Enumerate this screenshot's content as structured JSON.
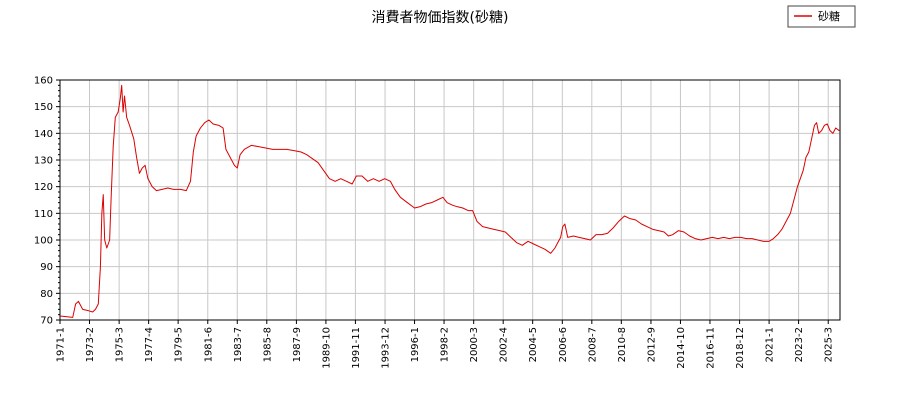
{
  "chart_data": {
    "type": "line",
    "title": "消費者物価指数(砂糖)",
    "xlabel": "",
    "ylabel": "",
    "ylim": [
      70,
      160
    ],
    "yticks": [
      70,
      80,
      90,
      100,
      110,
      120,
      130,
      140,
      150,
      160
    ],
    "xlim": [
      1971.0,
      2026.0
    ],
    "xticks": [
      {
        "label": "1971-1",
        "x": 1971.0
      },
      {
        "label": "1973-2",
        "x": 1973.08
      },
      {
        "label": "1975-3",
        "x": 1975.17
      },
      {
        "label": "1977-4",
        "x": 1977.25
      },
      {
        "label": "1979-5",
        "x": 1979.33
      },
      {
        "label": "1981-6",
        "x": 1981.42
      },
      {
        "label": "1983-7",
        "x": 1983.5
      },
      {
        "label": "1985-8",
        "x": 1985.58
      },
      {
        "label": "1987-9",
        "x": 1987.67
      },
      {
        "label": "1989-10",
        "x": 1989.75
      },
      {
        "label": "1991-11",
        "x": 1991.83
      },
      {
        "label": "1993-12",
        "x": 1993.92
      },
      {
        "label": "1996-1",
        "x": 1996.0
      },
      {
        "label": "1998-2",
        "x": 1998.08
      },
      {
        "label": "2000-3",
        "x": 2000.17
      },
      {
        "label": "2002-4",
        "x": 2002.25
      },
      {
        "label": "2004-5",
        "x": 2004.33
      },
      {
        "label": "2006-6",
        "x": 2006.42
      },
      {
        "label": "2008-7",
        "x": 2008.5
      },
      {
        "label": "2010-8",
        "x": 2010.58
      },
      {
        "label": "2012-9",
        "x": 2012.67
      },
      {
        "label": "2014-10",
        "x": 2014.75
      },
      {
        "label": "2016-11",
        "x": 2016.83
      },
      {
        "label": "2018-12",
        "x": 2018.92
      },
      {
        "label": "2021-1",
        "x": 2021.0
      },
      {
        "label": "2023-2",
        "x": 2023.08
      },
      {
        "label": "2025-3",
        "x": 2025.17
      }
    ],
    "grid": true,
    "legend": "top-right",
    "series": [
      {
        "name": "砂糖",
        "color": "#dd0000",
        "points": [
          [
            1971.0,
            71.5
          ],
          [
            1971.5,
            71.2
          ],
          [
            1971.9,
            71.0
          ],
          [
            1972.1,
            76.0
          ],
          [
            1972.3,
            77.0
          ],
          [
            1972.6,
            74.0
          ],
          [
            1973.0,
            73.5
          ],
          [
            1973.3,
            73.0
          ],
          [
            1973.5,
            74.0
          ],
          [
            1973.7,
            76.0
          ],
          [
            1973.85,
            90.0
          ],
          [
            1973.95,
            110.0
          ],
          [
            1974.05,
            117.0
          ],
          [
            1974.15,
            100.0
          ],
          [
            1974.3,
            97.0
          ],
          [
            1974.5,
            100.0
          ],
          [
            1974.6,
            115.0
          ],
          [
            1974.75,
            135.0
          ],
          [
            1974.9,
            146.0
          ],
          [
            1975.1,
            148.0
          ],
          [
            1975.25,
            153.0
          ],
          [
            1975.35,
            158.0
          ],
          [
            1975.45,
            148.0
          ],
          [
            1975.55,
            154.0
          ],
          [
            1975.7,
            146.0
          ],
          [
            1975.9,
            143.0
          ],
          [
            1976.2,
            138.0
          ],
          [
            1976.4,
            131.0
          ],
          [
            1976.6,
            125.0
          ],
          [
            1976.8,
            127.0
          ],
          [
            1977.0,
            128.0
          ],
          [
            1977.2,
            123.0
          ],
          [
            1977.5,
            120.0
          ],
          [
            1977.8,
            118.5
          ],
          [
            1978.2,
            119.0
          ],
          [
            1978.6,
            119.5
          ],
          [
            1979.0,
            119.0
          ],
          [
            1979.5,
            119.0
          ],
          [
            1979.9,
            118.5
          ],
          [
            1980.2,
            122.0
          ],
          [
            1980.4,
            133.0
          ],
          [
            1980.6,
            139.0
          ],
          [
            1980.9,
            142.0
          ],
          [
            1981.2,
            144.0
          ],
          [
            1981.5,
            145.0
          ],
          [
            1981.8,
            143.5
          ],
          [
            1982.2,
            143.0
          ],
          [
            1982.5,
            142.0
          ],
          [
            1982.7,
            134.0
          ],
          [
            1983.0,
            131.0
          ],
          [
            1983.3,
            128.0
          ],
          [
            1983.5,
            127.0
          ],
          [
            1983.7,
            132.0
          ],
          [
            1984.0,
            134.0
          ],
          [
            1984.5,
            135.5
          ],
          [
            1985.0,
            135.0
          ],
          [
            1985.5,
            134.5
          ],
          [
            1986.0,
            134.0
          ],
          [
            1986.5,
            134.0
          ],
          [
            1987.0,
            134.0
          ],
          [
            1987.5,
            133.5
          ],
          [
            1988.0,
            133.0
          ],
          [
            1988.4,
            132.0
          ],
          [
            1988.8,
            130.5
          ],
          [
            1989.2,
            129.0
          ],
          [
            1989.6,
            126.0
          ],
          [
            1990.0,
            123.0
          ],
          [
            1990.4,
            122.0
          ],
          [
            1990.8,
            123.0
          ],
          [
            1991.2,
            122.0
          ],
          [
            1991.6,
            121.0
          ],
          [
            1991.9,
            124.0
          ],
          [
            1992.3,
            124.0
          ],
          [
            1992.7,
            122.0
          ],
          [
            1993.1,
            123.0
          ],
          [
            1993.5,
            122.0
          ],
          [
            1993.9,
            123.0
          ],
          [
            1994.3,
            122.0
          ],
          [
            1994.6,
            119.0
          ],
          [
            1995.0,
            116.0
          ],
          [
            1995.5,
            114.0
          ],
          [
            1996.0,
            112.0
          ],
          [
            1996.4,
            112.5
          ],
          [
            1996.8,
            113.5
          ],
          [
            1997.2,
            114.0
          ],
          [
            1997.6,
            115.0
          ],
          [
            1998.0,
            116.0
          ],
          [
            1998.3,
            114.0
          ],
          [
            1998.7,
            113.0
          ],
          [
            1999.0,
            112.5
          ],
          [
            1999.4,
            112.0
          ],
          [
            1999.8,
            111.0
          ],
          [
            2000.1,
            111.0
          ],
          [
            2000.4,
            107.0
          ],
          [
            2000.8,
            105.0
          ],
          [
            2001.2,
            104.5
          ],
          [
            2001.6,
            104.0
          ],
          [
            2002.0,
            103.5
          ],
          [
            2002.4,
            103.0
          ],
          [
            2002.8,
            101.0
          ],
          [
            2003.2,
            99.0
          ],
          [
            2003.6,
            98.0
          ],
          [
            2004.0,
            99.5
          ],
          [
            2004.4,
            98.5
          ],
          [
            2004.8,
            97.5
          ],
          [
            2005.2,
            96.5
          ],
          [
            2005.6,
            95.0
          ],
          [
            2005.9,
            97.0
          ],
          [
            2006.1,
            99.0
          ],
          [
            2006.3,
            101.0
          ],
          [
            2006.45,
            105.0
          ],
          [
            2006.6,
            106.0
          ],
          [
            2006.8,
            101.0
          ],
          [
            2007.2,
            101.5
          ],
          [
            2007.6,
            101.0
          ],
          [
            2008.0,
            100.5
          ],
          [
            2008.4,
            100.0
          ],
          [
            2008.8,
            102.0
          ],
          [
            2009.2,
            102.0
          ],
          [
            2009.6,
            102.5
          ],
          [
            2010.0,
            104.5
          ],
          [
            2010.4,
            107.0
          ],
          [
            2010.8,
            109.0
          ],
          [
            2011.2,
            108.0
          ],
          [
            2011.6,
            107.5
          ],
          [
            2012.0,
            106.0
          ],
          [
            2012.4,
            105.0
          ],
          [
            2012.8,
            104.0
          ],
          [
            2013.2,
            103.5
          ],
          [
            2013.6,
            103.0
          ],
          [
            2013.9,
            101.5
          ],
          [
            2014.2,
            102.0
          ],
          [
            2014.6,
            103.5
          ],
          [
            2015.0,
            103.0
          ],
          [
            2015.4,
            101.5
          ],
          [
            2015.8,
            100.5
          ],
          [
            2016.2,
            100.0
          ],
          [
            2016.6,
            100.5
          ],
          [
            2017.0,
            101.0
          ],
          [
            2017.4,
            100.5
          ],
          [
            2017.8,
            101.0
          ],
          [
            2018.2,
            100.5
          ],
          [
            2018.6,
            101.0
          ],
          [
            2019.0,
            101.0
          ],
          [
            2019.4,
            100.5
          ],
          [
            2019.8,
            100.5
          ],
          [
            2020.2,
            100.0
          ],
          [
            2020.6,
            99.5
          ],
          [
            2021.0,
            99.5
          ],
          [
            2021.3,
            100.5
          ],
          [
            2021.6,
            102.0
          ],
          [
            2021.9,
            104.0
          ],
          [
            2022.2,
            107.0
          ],
          [
            2022.5,
            110.0
          ],
          [
            2022.8,
            116.0
          ],
          [
            2023.0,
            120.0
          ],
          [
            2023.2,
            123.0
          ],
          [
            2023.4,
            126.0
          ],
          [
            2023.6,
            131.0
          ],
          [
            2023.8,
            133.0
          ],
          [
            2024.0,
            138.0
          ],
          [
            2024.2,
            143.0
          ],
          [
            2024.35,
            144.0
          ],
          [
            2024.5,
            140.0
          ],
          [
            2024.7,
            141.0
          ],
          [
            2024.9,
            143.0
          ],
          [
            2025.1,
            143.5
          ],
          [
            2025.3,
            141.0
          ],
          [
            2025.5,
            140.0
          ],
          [
            2025.7,
            142.0
          ],
          [
            2025.95,
            141.0
          ]
        ]
      }
    ]
  }
}
